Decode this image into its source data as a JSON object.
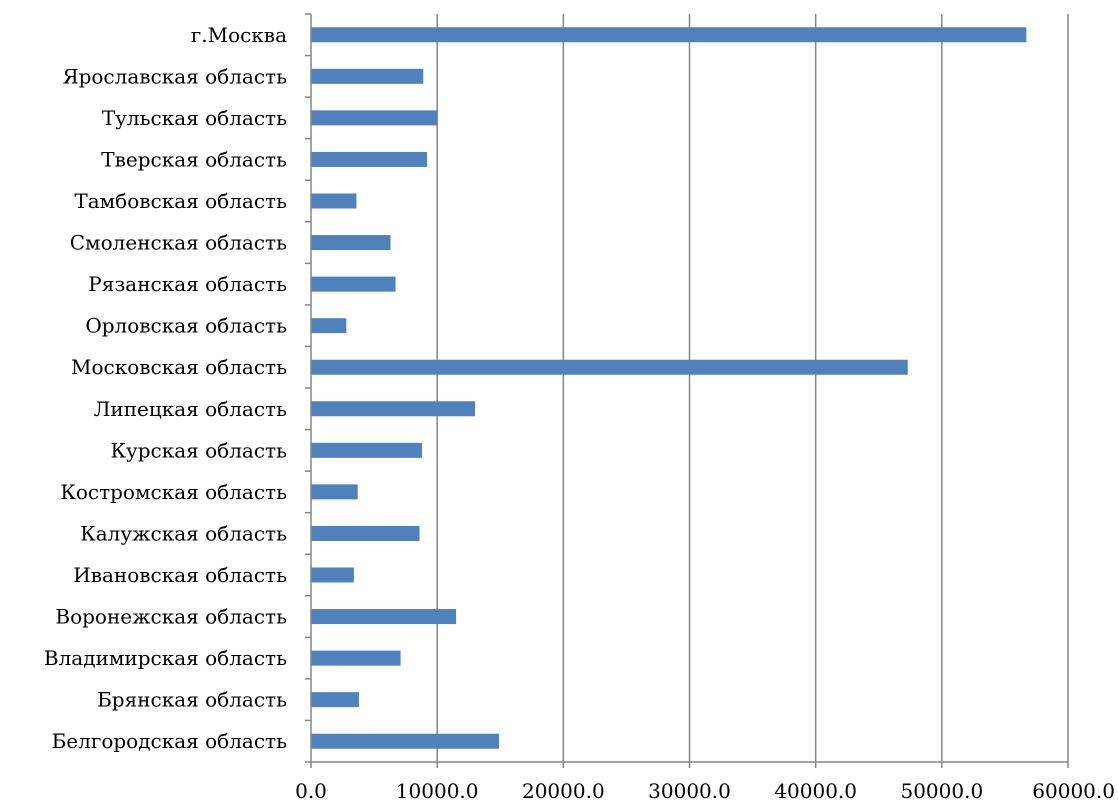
{
  "chart_data": {
    "type": "bar",
    "orientation": "horizontal",
    "categories": [
      "Белгородская область",
      "Брянская область",
      "Владимирская область",
      "Воронежская область",
      "Ивановская область",
      "Калужская область",
      "Костромская область",
      "Курская область",
      "Липецкая область",
      "Московская область",
      "Орловская область",
      "Рязанская область",
      "Смоленская область",
      "Тамбовская область",
      "Тверская область",
      "Тульская область",
      "Ярославская область",
      "г.Москва"
    ],
    "values": [
      14900,
      3800,
      7100,
      11500,
      3400,
      8600,
      3700,
      8800,
      13000,
      47300,
      2800,
      6700,
      6300,
      3600,
      9200,
      10000,
      8900,
      56700
    ],
    "xlim": [
      0,
      60000
    ],
    "xticks": [
      0,
      10000,
      20000,
      30000,
      40000,
      50000,
      60000
    ],
    "tick_labels": [
      "0.0",
      "10000.0",
      "20000.0",
      "30000.0",
      "40000.0",
      "50000.0",
      "60000.0"
    ],
    "grid": "vertical",
    "legend": "none",
    "title": "",
    "xlabel": "",
    "ylabel": ""
  },
  "colors": {
    "bar": "#4f81bd",
    "grid": "#868686",
    "axis": "#868686"
  }
}
